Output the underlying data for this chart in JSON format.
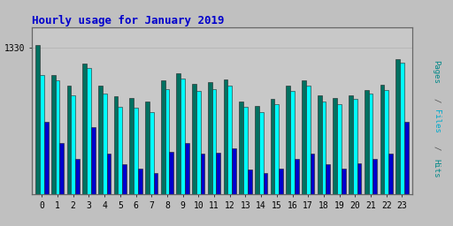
{
  "title": "Hourly usage for January 2019",
  "hours": [
    0,
    1,
    2,
    3,
    4,
    5,
    6,
    7,
    8,
    9,
    10,
    11,
    12,
    13,
    14,
    15,
    16,
    17,
    18,
    19,
    20,
    21,
    22,
    23
  ],
  "files": [
    1335,
    1278,
    1258,
    1300,
    1258,
    1238,
    1235,
    1228,
    1268,
    1282,
    1262,
    1265,
    1270,
    1228,
    1220,
    1232,
    1258,
    1268,
    1240,
    1235,
    1240,
    1250,
    1260,
    1308
  ],
  "hits": [
    1278,
    1268,
    1240,
    1292,
    1242,
    1218,
    1215,
    1208,
    1252,
    1272,
    1248,
    1252,
    1258,
    1218,
    1208,
    1222,
    1248,
    1258,
    1228,
    1222,
    1232,
    1242,
    1250,
    1302
  ],
  "pages": [
    1188,
    1148,
    1118,
    1178,
    1128,
    1108,
    1100,
    1090,
    1132,
    1148,
    1128,
    1130,
    1138,
    1098,
    1090,
    1100,
    1118,
    1128,
    1108,
    1100,
    1110,
    1118,
    1128,
    1188
  ],
  "color_files": "#007060",
  "color_hits": "#00ffff",
  "color_pages": "#0000cc",
  "bg_color": "#c0c0c0",
  "plot_bg": "#c8c8c8",
  "title_color": "#0000cc",
  "ytick_val": 1330,
  "ymin": 1050,
  "ymax": 1370,
  "bar_width": 0.27,
  "figsize": [
    5.12,
    2.56
  ],
  "dpi": 100
}
